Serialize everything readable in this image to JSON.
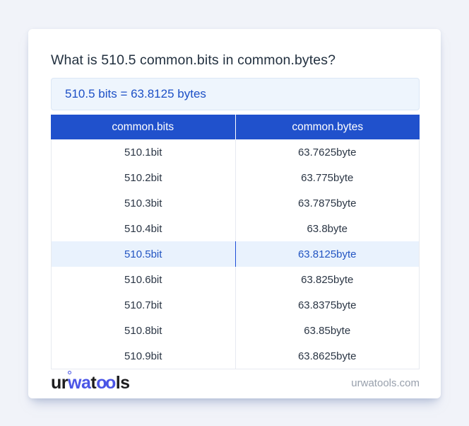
{
  "question": "What is 510.5 common.bits in common.bytes?",
  "answer": "510.5 bits = 63.8125 bytes",
  "table": {
    "headers": [
      "common.bits",
      "common.bytes"
    ],
    "rows": [
      {
        "bits": "510.1bit",
        "bytes": "63.7625byte",
        "highlighted": false
      },
      {
        "bits": "510.2bit",
        "bytes": "63.775byte",
        "highlighted": false
      },
      {
        "bits": "510.3bit",
        "bytes": "63.7875byte",
        "highlighted": false
      },
      {
        "bits": "510.4bit",
        "bytes": "63.8byte",
        "highlighted": false
      },
      {
        "bits": "510.5bit",
        "bytes": "63.8125byte",
        "highlighted": true
      },
      {
        "bits": "510.6bit",
        "bytes": "63.825byte",
        "highlighted": false
      },
      {
        "bits": "510.7bit",
        "bytes": "63.8375byte",
        "highlighted": false
      },
      {
        "bits": "510.8bit",
        "bytes": "63.85byte",
        "highlighted": false
      },
      {
        "bits": "510.9bit",
        "bytes": "63.8625byte",
        "highlighted": false
      }
    ]
  },
  "footer": {
    "logo_parts": {
      "p1": "ur",
      "p2": "wa",
      "p3": "t",
      "p4": "oo",
      "p5": "ls"
    },
    "site": "urwatools.com"
  },
  "colors": {
    "page_bg": "#f1f3f9",
    "header_blue": "#2051cc",
    "answer_bg": "#eef5fd",
    "answer_text": "#1d50c6",
    "highlight_bg": "#e9f2fd",
    "highlight_text": "#2355c2",
    "highlight_divider": "#1d4ed8",
    "logo_blue": "#4a55e6",
    "footer_gray": "#98a0ac"
  }
}
